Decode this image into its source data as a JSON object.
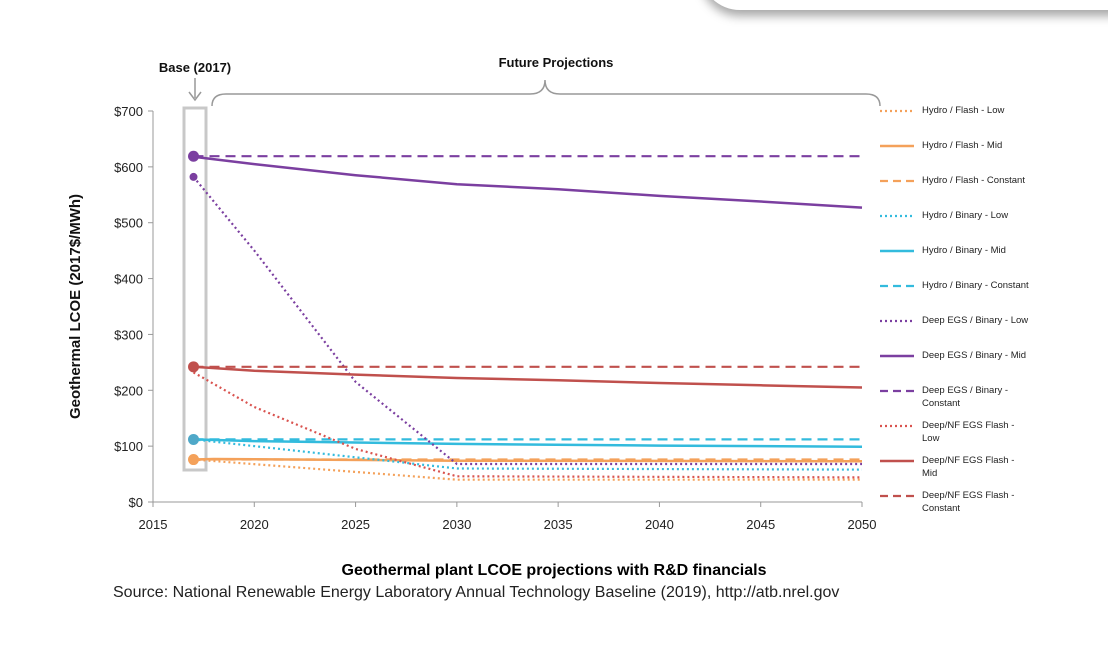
{
  "chart_data": {
    "type": "line",
    "ylabel": "Geothermal LCOE (2017$/MWh)",
    "xlim": [
      2015,
      2050
    ],
    "ylim": [
      0,
      700
    ],
    "x_ticks": [
      "2015",
      "2020",
      "2025",
      "2030",
      "2035",
      "2040",
      "2045",
      "2050"
    ],
    "y_ticks": [
      "$0",
      "$100",
      "$200",
      "$300",
      "$400",
      "$500",
      "$600",
      "$700"
    ],
    "annotations": {
      "base": "Base (2017)",
      "future": "Future Projections"
    },
    "title": "Geothermal plant LCOE projections with R&D financials",
    "source": "Source: National Renewable Energy Laboratory Annual Technology Baseline (2019),  http://atb.nrel.gov",
    "series": [
      {
        "name": "Hydro / Flash - Low",
        "color": "#F4A15A",
        "style": "dotted",
        "points": [
          [
            2017,
            76
          ],
          [
            2030,
            40
          ],
          [
            2050,
            40
          ]
        ]
      },
      {
        "name": "Hydro / Flash - Mid",
        "color": "#F4A15A",
        "style": "solid",
        "points": [
          [
            2017,
            76
          ],
          [
            2018,
            77
          ],
          [
            2030,
            74
          ],
          [
            2050,
            73
          ]
        ]
      },
      {
        "name": "Hydro / Flash - Constant",
        "color": "#F4A15A",
        "style": "dashed",
        "points": [
          [
            2017,
            76
          ],
          [
            2050,
            76
          ]
        ]
      },
      {
        "name": "Hydro / Binary - Low",
        "color": "#33BBDD",
        "style": "dotted",
        "points": [
          [
            2017,
            112
          ],
          [
            2030,
            60
          ],
          [
            2050,
            58
          ]
        ]
      },
      {
        "name": "Hydro / Binary - Mid",
        "color": "#33BBDD",
        "style": "solid",
        "points": [
          [
            2017,
            112
          ],
          [
            2020,
            109
          ],
          [
            2030,
            104
          ],
          [
            2040,
            101
          ],
          [
            2050,
            99
          ]
        ]
      },
      {
        "name": "Hydro / Binary - Constant",
        "color": "#33BBDD",
        "style": "dashed",
        "points": [
          [
            2017,
            112
          ],
          [
            2050,
            112
          ]
        ]
      },
      {
        "name": "Deep EGS / Binary - Low",
        "color": "#7B3FA0",
        "style": "dotted",
        "points": [
          [
            2017,
            582
          ],
          [
            2020,
            450
          ],
          [
            2025,
            215
          ],
          [
            2030,
            68
          ],
          [
            2050,
            68
          ]
        ]
      },
      {
        "name": "Deep EGS / Binary - Mid",
        "color": "#7B3FA0",
        "style": "solid",
        "points": [
          [
            2017,
            618
          ],
          [
            2020,
            605
          ],
          [
            2025,
            585
          ],
          [
            2030,
            569
          ],
          [
            2035,
            560
          ],
          [
            2040,
            548
          ],
          [
            2045,
            538
          ],
          [
            2050,
            527
          ]
        ]
      },
      {
        "name": "Deep EGS / Binary - Constant",
        "color": "#7B3FA0",
        "style": "dashed",
        "points": [
          [
            2017,
            619
          ],
          [
            2050,
            619
          ]
        ]
      },
      {
        "name": "Deep/NF EGS Flash - Low",
        "color": "#D9534F",
        "style": "dotted",
        "points": [
          [
            2017,
            232
          ],
          [
            2020,
            170
          ],
          [
            2025,
            95
          ],
          [
            2030,
            46
          ],
          [
            2050,
            44
          ]
        ]
      },
      {
        "name": "Deep/NF EGS Flash - Mid",
        "color": "#C0504D",
        "style": "solid",
        "points": [
          [
            2017,
            242
          ],
          [
            2020,
            235
          ],
          [
            2025,
            228
          ],
          [
            2030,
            222
          ],
          [
            2035,
            218
          ],
          [
            2040,
            213
          ],
          [
            2045,
            209
          ],
          [
            2050,
            205
          ]
        ]
      },
      {
        "name": "Deep/NF EGS Flash - Constant",
        "color": "#C0504D",
        "style": "dashed",
        "points": [
          [
            2017,
            242
          ],
          [
            2050,
            242
          ]
        ]
      }
    ],
    "base_markers": [
      {
        "y": 619,
        "color": "#7B3FA0"
      },
      {
        "y": 582,
        "color": "#7B3FA0"
      },
      {
        "y": 242,
        "color": "#C0504D"
      },
      {
        "y": 112,
        "color": "#4FA8C8"
      },
      {
        "y": 76,
        "color": "#F4A15A"
      }
    ]
  },
  "legend": [
    {
      "label": "Hydro / Flash - Low",
      "color": "#F4A15A",
      "style": "dotted"
    },
    {
      "label": "Hydro / Flash - Mid",
      "color": "#F4A15A",
      "style": "solid"
    },
    {
      "label": "Hydro / Flash - Constant",
      "color": "#F4A15A",
      "style": "dashed"
    },
    {
      "label": "Hydro / Binary - Low",
      "color": "#33BBDD",
      "style": "dotted"
    },
    {
      "label": "Hydro / Binary - Mid",
      "color": "#33BBDD",
      "style": "solid"
    },
    {
      "label": "Hydro / Binary - Constant",
      "color": "#33BBDD",
      "style": "dashed"
    },
    {
      "label": "Deep EGS / Binary - Low",
      "color": "#7B3FA0",
      "style": "dotted"
    },
    {
      "label": "Deep EGS / Binary - Mid",
      "color": "#7B3FA0",
      "style": "solid"
    },
    {
      "label": "Deep EGS / Binary - Constant",
      "color": "#7B3FA0",
      "style": "dashed"
    },
    {
      "label": "Deep/NF EGS Flash - Low",
      "color": "#D9534F",
      "style": "dotted"
    },
    {
      "label": "Deep/NF EGS Flash - Mid",
      "color": "#C0504D",
      "style": "solid"
    },
    {
      "label": "Deep/NF EGS Flash - Constant",
      "color": "#C0504D",
      "style": "dashed"
    }
  ]
}
